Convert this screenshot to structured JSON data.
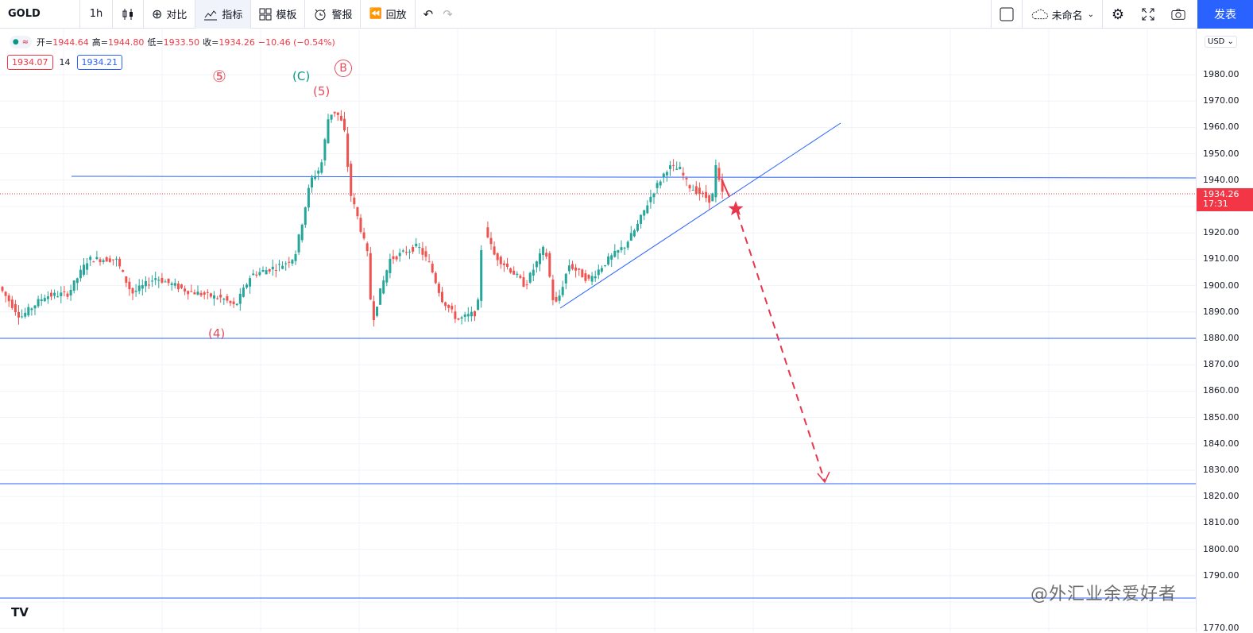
{
  "toolbar": {
    "symbol": "GOLD",
    "interval": "1h",
    "compare": "对比",
    "indicators": "指标",
    "templates": "模板",
    "alerts": "警报",
    "replay": "回放",
    "layout_name": "未命名",
    "publish": "发表"
  },
  "legend": {
    "open_label": "开=",
    "open": "1944.64",
    "high_label": "高=",
    "high": "1944.80",
    "low_label": "低=",
    "low": "1933.50",
    "close_label": "收=",
    "close": "1934.26",
    "change": "−10.46 (−0.54%)"
  },
  "indicator": {
    "value_a": "1934.07",
    "length": "14",
    "value_b": "1934.21"
  },
  "price_axis": {
    "currency": "USD",
    "labels": [
      "1980.00",
      "1970.00",
      "1960.00",
      "1950.00",
      "1940.00",
      "1920.00",
      "1910.00",
      "1900.00",
      "1890.00",
      "1880.00",
      "1870.00",
      "1860.00",
      "1850.00",
      "1840.00",
      "1830.00",
      "1820.00",
      "1810.00",
      "1800.00",
      "1790.00",
      "1770.00"
    ],
    "current_price": "1934.26",
    "countdown": "17:31"
  },
  "wave_labels": {
    "w5_circled": "⑤",
    "wC": "(C)",
    "wB_circled": "B",
    "w5": "(5)",
    "w4": "(4)"
  },
  "watermark": "@外汇业余爱好者",
  "colors": {
    "up": "#26a69a",
    "down": "#ef5350",
    "hline": "#2962ff",
    "projection": "#e8364d",
    "accent": "#2962ff"
  }
}
